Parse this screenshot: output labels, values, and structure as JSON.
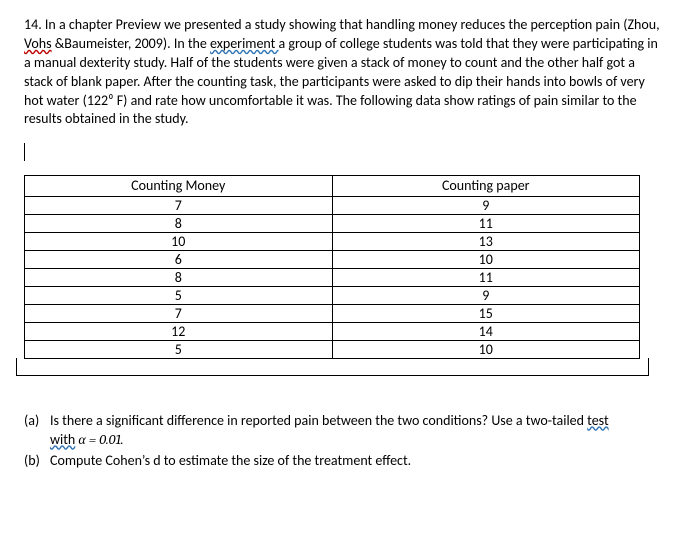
{
  "question": {
    "number": "14.",
    "pre_vohs": "In a chapter Preview we presented a study showing that handling money reduces the perception pain (Zhou, ",
    "vohs": "Vohs",
    "post_vohs_pre_experiment": " &Baumeister, 2009). In the ",
    "experiment_text": "experiment ",
    "post_experiment": " a group of college students was told that they were participating in a manual dexterity study. Half of the students were given a stack of money to count and the other half got a stack of blank paper. After the counting task, the participants were asked to dip their hands into bowls of very hot water (122⁰ F) and rate how uncomfortable it was. The following data show ratings of pain similar to the results obtained in the study."
  },
  "table": {
    "header_left": "Counting Money",
    "header_right": "Counting paper",
    "rows": [
      {
        "left": "7",
        "right": "9"
      },
      {
        "left": "8",
        "right": "11"
      },
      {
        "left": "10",
        "right": "13"
      },
      {
        "left": "6",
        "right": "10"
      },
      {
        "left": "8",
        "right": "11"
      },
      {
        "left": "5",
        "right": "9"
      },
      {
        "left": "7",
        "right": "15"
      },
      {
        "left": "12",
        "right": "14"
      },
      {
        "left": "5",
        "right": "10"
      }
    ]
  },
  "sub": {
    "a_label": "(a)",
    "a_pre": "Is there a significant difference in reported pain between the two conditions? Use a two-tailed ",
    "a_test": "test ",
    "a_with": "with",
    "a_alpha": " α = 0.01.",
    "b_label": "(b)",
    "b_text": "Compute Cohen’s d to estimate the size of the treatment effect."
  }
}
